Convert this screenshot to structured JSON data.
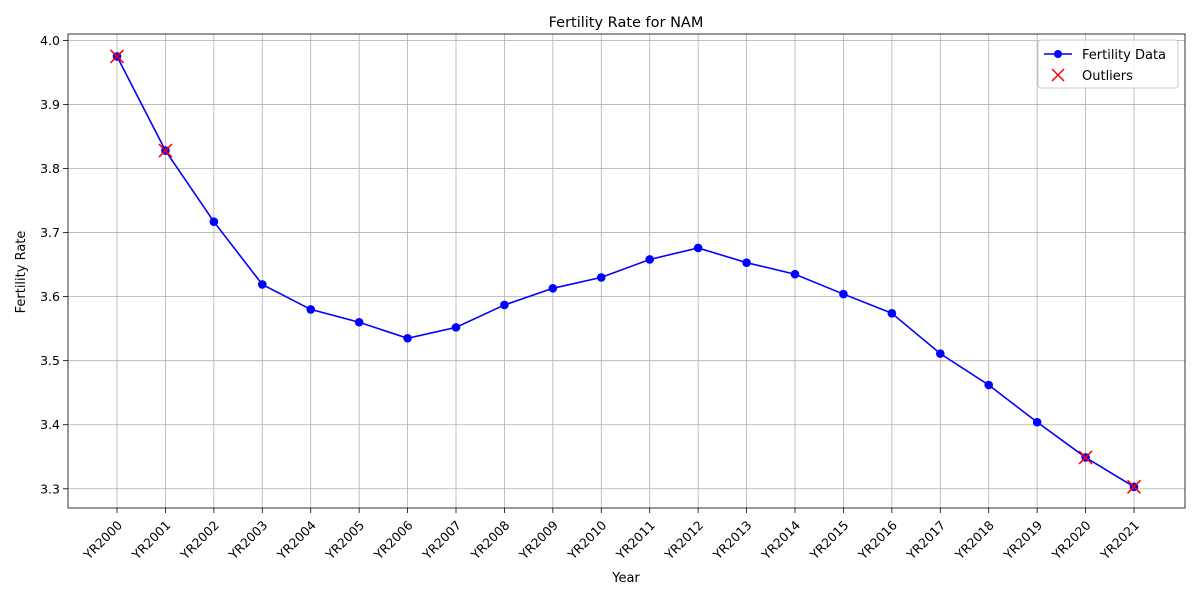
{
  "chart_data": {
    "type": "line",
    "title": "Fertility Rate for NAM",
    "xlabel": "Year",
    "ylabel": "Fertility Rate",
    "categories": [
      "YR2000",
      "YR2001",
      "YR2002",
      "YR2003",
      "YR2004",
      "YR2005",
      "YR2006",
      "YR2007",
      "YR2008",
      "YR2009",
      "YR2010",
      "YR2011",
      "YR2012",
      "YR2013",
      "YR2014",
      "YR2015",
      "YR2016",
      "YR2017",
      "YR2018",
      "YR2019",
      "YR2020",
      "YR2021"
    ],
    "ylim": [
      3.27,
      4.01
    ],
    "yticks": [
      "3.3",
      "3.4",
      "3.5",
      "3.6",
      "3.7",
      "3.8",
      "3.9",
      "4.0"
    ],
    "grid": true,
    "legend_position": "top-right",
    "series": [
      {
        "name": "Fertility Data",
        "color": "#0000ff",
        "marker": "circle",
        "values": [
          3.975,
          3.828,
          3.717,
          3.619,
          3.58,
          3.56,
          3.535,
          3.552,
          3.587,
          3.613,
          3.63,
          3.658,
          3.676,
          3.653,
          3.635,
          3.604,
          3.574,
          3.511,
          3.462,
          3.404,
          3.349,
          3.303
        ]
      },
      {
        "name": "Outliers",
        "color": "#ff0000",
        "marker": "x",
        "points": [
          {
            "x": "YR2000",
            "y": 3.975
          },
          {
            "x": "YR2001",
            "y": 3.828
          },
          {
            "x": "YR2020",
            "y": 3.349
          },
          {
            "x": "YR2021",
            "y": 3.303
          }
        ]
      }
    ]
  }
}
